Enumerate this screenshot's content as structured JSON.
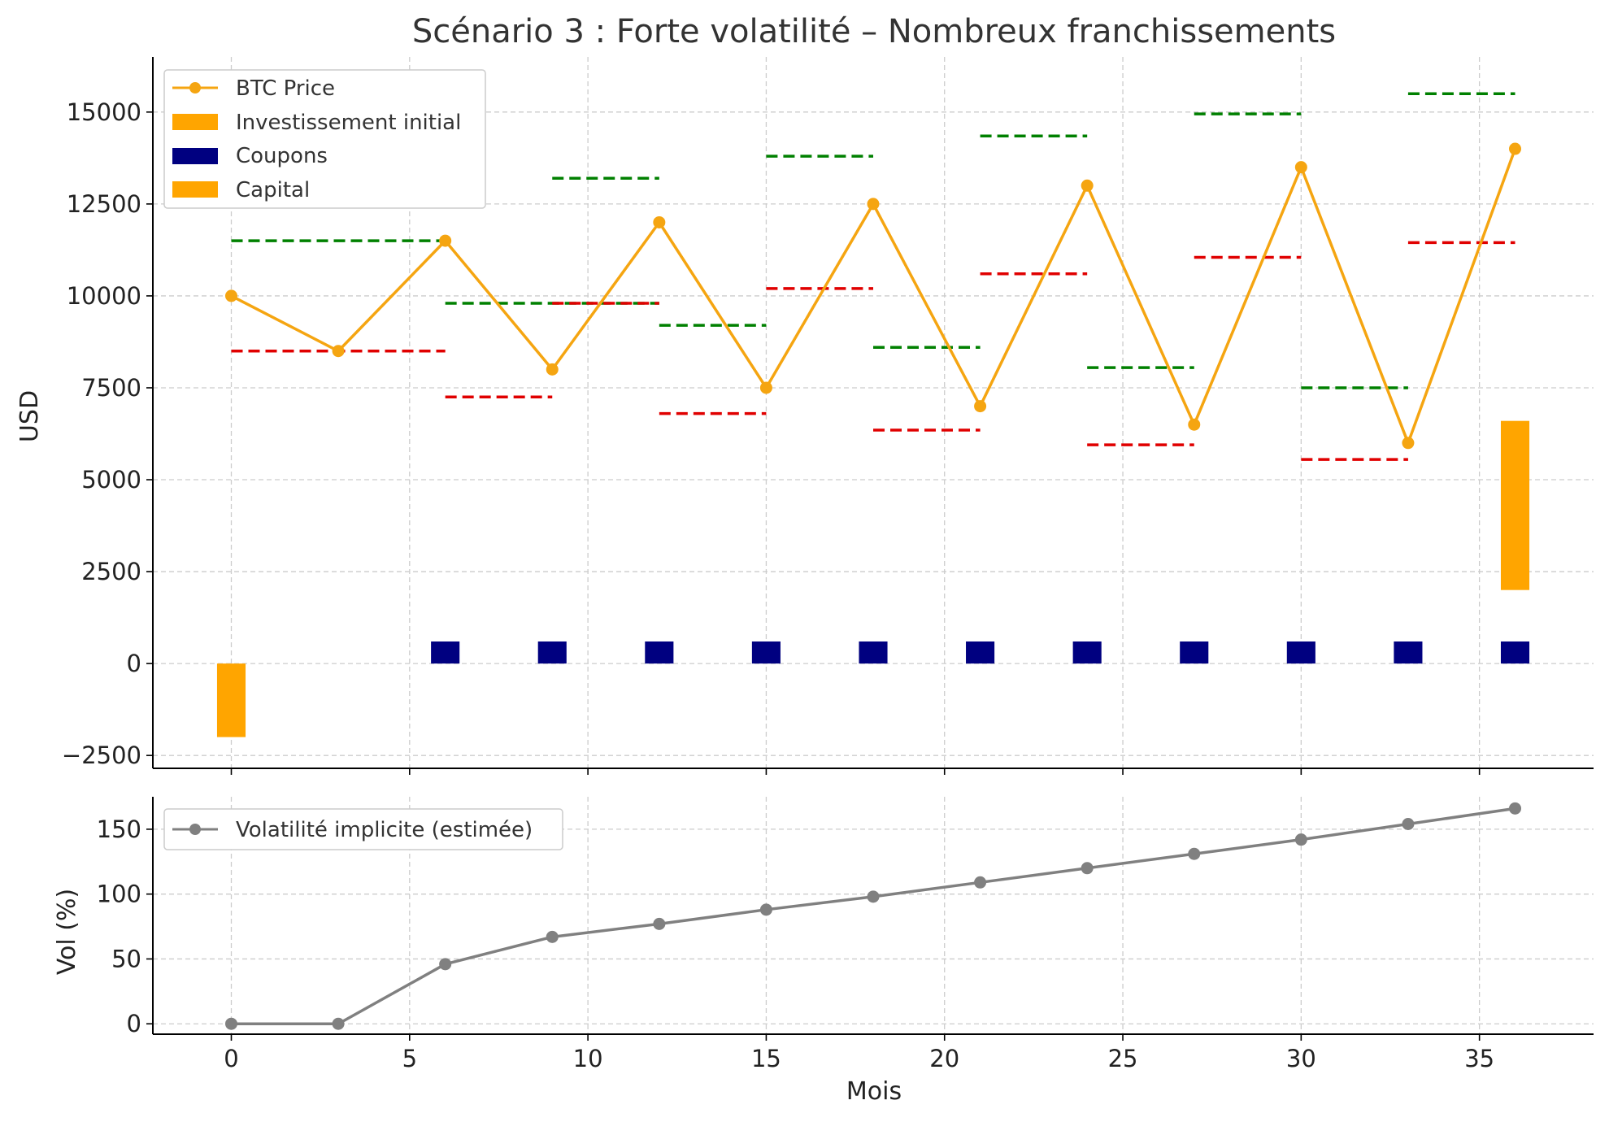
{
  "chart_data": [
    {
      "type": "line",
      "title": "Scénario 3 : Forte volatilité – Nombreux franchissements",
      "xlabel": "",
      "ylabel": "USD",
      "xlim": [
        -2.2,
        38.2
      ],
      "ylim": [
        -2850,
        16500
      ],
      "x_ticks": [
        0,
        5,
        10,
        15,
        20,
        25,
        30,
        35
      ],
      "y_ticks": [
        -2500,
        0,
        2500,
        5000,
        7500,
        10000,
        12500,
        15000
      ],
      "y_tick_labels": [
        "−2500",
        "0",
        "2500",
        "5000",
        "7500",
        "10000",
        "12500",
        "15000"
      ],
      "grid": true,
      "legend_position": "upper-left",
      "legend": [
        "BTC Price",
        "Investissement initial",
        "Coupons",
        "Capital"
      ],
      "colors": {
        "btc": "#f5a511",
        "initial": "#ffa500",
        "coupons": "#000080",
        "capital": "#ffa500",
        "autocall_barrier": "#008000",
        "coupon_barrier": "#e00000"
      },
      "series": [
        {
          "name": "BTC Price",
          "x": [
            0,
            3,
            6,
            9,
            12,
            15,
            18,
            21,
            24,
            27,
            30,
            33,
            36
          ],
          "y": [
            10000,
            8500,
            11500,
            8000,
            12000,
            7500,
            12500,
            7000,
            13000,
            6500,
            13500,
            6000,
            14000
          ]
        }
      ],
      "bars": {
        "width": 0.8,
        "investissement_initial": {
          "x": [
            0
          ],
          "y": [
            -2000
          ]
        },
        "coupons": {
          "x": [
            6,
            9,
            12,
            15,
            18,
            21,
            24,
            27,
            30,
            33,
            36
          ],
          "y": [
            600,
            600,
            600,
            600,
            600,
            600,
            600,
            600,
            600,
            600,
            600
          ]
        },
        "capital": {
          "x": [
            36
          ],
          "bottom": [
            2000
          ],
          "y": [
            4600
          ]
        }
      },
      "barrier_segments": {
        "upper": [
          {
            "x0": 0,
            "x1": 6,
            "y": 11500
          },
          {
            "x0": 6,
            "x1": 12,
            "y": 9800
          },
          {
            "x0": 9,
            "x1": 12,
            "y": 13200
          },
          {
            "x0": 12,
            "x1": 15,
            "y": 9200
          },
          {
            "x0": 15,
            "x1": 18,
            "y": 13800
          },
          {
            "x0": 18,
            "x1": 21,
            "y": 8600
          },
          {
            "x0": 21,
            "x1": 24,
            "y": 14350
          },
          {
            "x0": 24,
            "x1": 27,
            "y": 8050
          },
          {
            "x0": 27,
            "x1": 30,
            "y": 14950
          },
          {
            "x0": 30,
            "x1": 33,
            "y": 7500
          },
          {
            "x0": 33,
            "x1": 36,
            "y": 15500
          }
        ],
        "lower": [
          {
            "x0": 0,
            "x1": 6,
            "y": 8500
          },
          {
            "x0": 6,
            "x1": 9,
            "y": 7250
          },
          {
            "x0": 9,
            "x1": 12,
            "y": 9800
          },
          {
            "x0": 12,
            "x1": 15,
            "y": 6800
          },
          {
            "x0": 15,
            "x1": 18,
            "y": 10200
          },
          {
            "x0": 18,
            "x1": 21,
            "y": 6350
          },
          {
            "x0": 21,
            "x1": 24,
            "y": 10600
          },
          {
            "x0": 24,
            "x1": 27,
            "y": 5950
          },
          {
            "x0": 27,
            "x1": 30,
            "y": 11050
          },
          {
            "x0": 30,
            "x1": 33,
            "y": 5550
          },
          {
            "x0": 33,
            "x1": 36,
            "y": 11450
          }
        ]
      }
    },
    {
      "type": "line",
      "title": "",
      "xlabel": "Mois",
      "ylabel": "Vol (%)",
      "xlim": [
        -2.2,
        38.2
      ],
      "ylim": [
        -8,
        175
      ],
      "x_ticks": [
        0,
        5,
        10,
        15,
        20,
        25,
        30,
        35
      ],
      "y_ticks": [
        0,
        50,
        100,
        150
      ],
      "grid": true,
      "legend_position": "upper-left",
      "legend": [
        "Volatilité implicite (estimée)"
      ],
      "colors": {
        "vol": "#808080"
      },
      "series": [
        {
          "name": "Volatilité implicite (estimée)",
          "x": [
            0,
            3,
            6,
            9,
            12,
            15,
            18,
            21,
            24,
            27,
            30,
            33,
            36
          ],
          "y": [
            0,
            0,
            46,
            67,
            77,
            88,
            98,
            109,
            120,
            131,
            142,
            154,
            166
          ]
        }
      ]
    }
  ]
}
